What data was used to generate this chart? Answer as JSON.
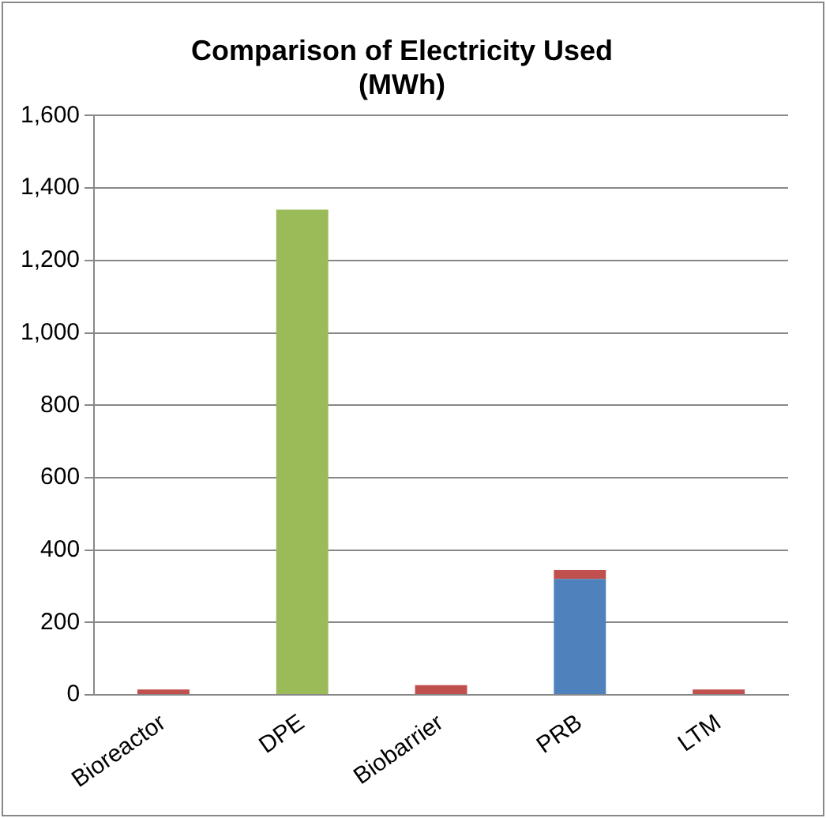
{
  "chart_data": {
    "type": "bar",
    "title": "Comparison of Electricity Used (MWh)",
    "categories": [
      "Bioreactor",
      "DPE",
      "Biobarrier",
      "PRB",
      "LTM"
    ],
    "stacked": true,
    "series": [
      {
        "color": "#4f81bd",
        "values": [
          0,
          0,
          0,
          320,
          0
        ]
      },
      {
        "color": "#9bbb59",
        "values": [
          0,
          1340,
          0,
          0,
          0
        ]
      },
      {
        "color": "#c0504d",
        "values": [
          15,
          0,
          27,
          25,
          15
        ]
      }
    ],
    "ylim": [
      0,
      1600
    ],
    "yticks": [
      0,
      200,
      400,
      600,
      800,
      {
        "value": 1000,
        "label": "1,000"
      },
      {
        "value": 1200,
        "label": "1,200"
      },
      {
        "value": 1400,
        "label": "1,400"
      },
      {
        "value": 1600,
        "label": "1,600"
      }
    ],
    "grid": "y",
    "legend": false
  }
}
